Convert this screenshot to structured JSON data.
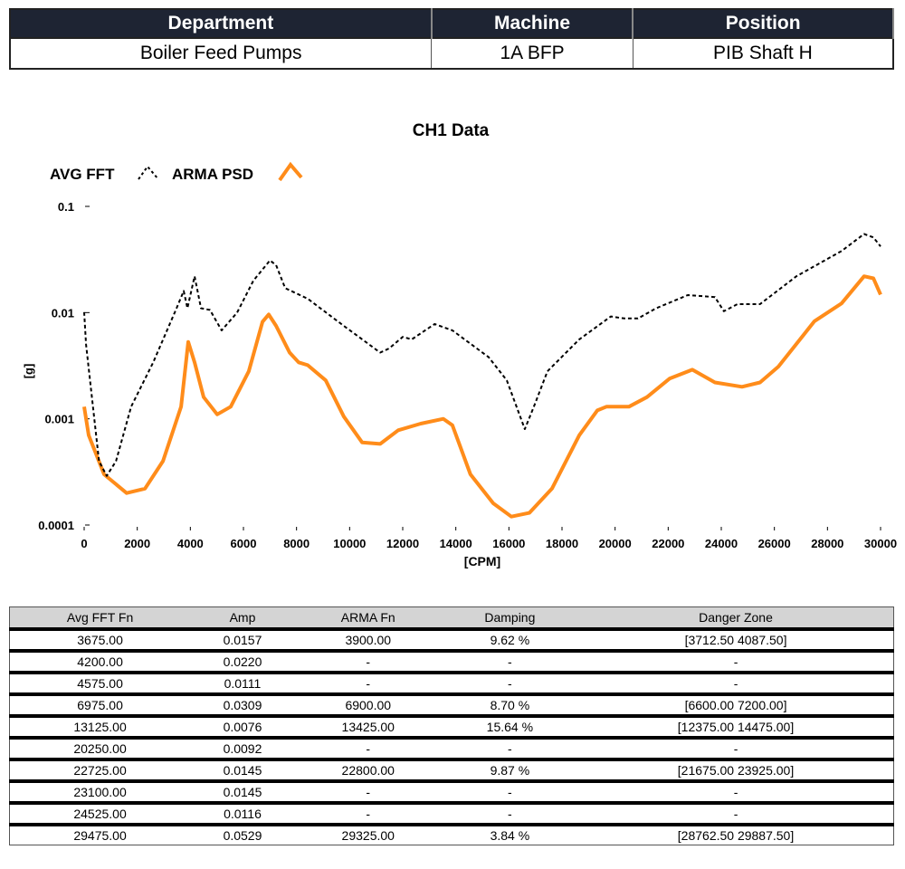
{
  "info": {
    "headers": [
      "Department",
      "Machine",
      "Position"
    ],
    "values": [
      "Boiler Feed Pumps",
      "1A BFP",
      "PIB Shaft H"
    ]
  },
  "chart_data": {
    "type": "line",
    "title": "CH1 Data",
    "xlabel": "[CPM]",
    "ylabel": "[g]",
    "xlim": [
      0,
      30000
    ],
    "ylim": [
      0.0001,
      0.1
    ],
    "yscale": "log",
    "grid": false,
    "legend": "top-left",
    "xticks": [
      "0",
      "2000",
      "4000",
      "6000",
      "8000",
      "10000",
      "12000",
      "14000",
      "16000",
      "18000",
      "20000",
      "22000",
      "24000",
      "26000",
      "28000",
      "30000"
    ],
    "yticks": [
      "0.1",
      "0.01",
      "0.001",
      "0.0001"
    ],
    "series": [
      {
        "name": "AVG FFT",
        "color": "#000000",
        "style": "dashed",
        "x": [
          0,
          70,
          560,
          850,
          1200,
          1770,
          2600,
          3480,
          3750,
          3890,
          4160,
          4400,
          4740,
          5180,
          5760,
          6375,
          7000,
          7230,
          7570,
          8420,
          9780,
          11150,
          11490,
          12000,
          12340,
          13200,
          13870,
          15240,
          15920,
          16600,
          16940,
          17450,
          18650,
          19840,
          20350,
          20860,
          21550,
          22740,
          23760,
          24100,
          24610,
          25460,
          26830,
          28530,
          29380,
          29730,
          30000
        ],
        "y": [
          0.0101,
          0.005,
          0.0004,
          0.00029,
          0.0004,
          0.0013,
          0.0034,
          0.011,
          0.016,
          0.011,
          0.022,
          0.011,
          0.0106,
          0.0068,
          0.01,
          0.02,
          0.031,
          0.028,
          0.017,
          0.0135,
          0.0075,
          0.0042,
          0.0046,
          0.0059,
          0.0056,
          0.0078,
          0.0068,
          0.0038,
          0.0023,
          0.0008,
          0.0013,
          0.0028,
          0.0056,
          0.0092,
          0.0088,
          0.0088,
          0.011,
          0.0146,
          0.014,
          0.0103,
          0.012,
          0.012,
          0.022,
          0.038,
          0.055,
          0.051,
          0.042
        ]
      },
      {
        "name": "ARMA PSD",
        "color": "#ff8c1a",
        "style": "solid",
        "x": [
          0,
          170,
          750,
          1600,
          2290,
          2970,
          3650,
          3920,
          4160,
          4500,
          5010,
          5520,
          6200,
          6720,
          6950,
          7230,
          7740,
          8080,
          8420,
          9100,
          9780,
          10470,
          11150,
          11830,
          12680,
          13530,
          13870,
          14550,
          15410,
          16090,
          16770,
          17620,
          18650,
          19330,
          19670,
          20520,
          21200,
          22060,
          22910,
          23760,
          24780,
          25460,
          26150,
          27510,
          28530,
          29380,
          29730,
          30000
        ],
        "y": [
          0.0013,
          0.0007,
          0.0003,
          0.0002,
          0.00022,
          0.0004,
          0.0013,
          0.0053,
          0.0034,
          0.0016,
          0.0011,
          0.0013,
          0.0028,
          0.0082,
          0.0096,
          0.0075,
          0.0042,
          0.0034,
          0.0032,
          0.0023,
          0.00105,
          0.0006,
          0.00058,
          0.00078,
          0.0009,
          0.001,
          0.00087,
          0.0003,
          0.00016,
          0.00012,
          0.00013,
          0.00022,
          0.0007,
          0.0012,
          0.0013,
          0.0013,
          0.0016,
          0.0024,
          0.0029,
          0.0022,
          0.002,
          0.0022,
          0.0031,
          0.0083,
          0.0122,
          0.022,
          0.021,
          0.0148
        ]
      }
    ]
  },
  "results": {
    "headers": [
      "Avg FFT Fn",
      "Amp",
      "ARMA Fn",
      "Damping",
      "Danger Zone"
    ],
    "rows": [
      [
        "3675.00",
        "0.0157",
        "3900.00",
        "9.62 %",
        "[3712.50  4087.50]"
      ],
      [
        "4200.00",
        "0.0220",
        "-",
        "-",
        "-"
      ],
      [
        "4575.00",
        "0.0111",
        "-",
        "-",
        "-"
      ],
      [
        "6975.00",
        "0.0309",
        "6900.00",
        "8.70 %",
        "[6600.00  7200.00]"
      ],
      [
        "13125.00",
        "0.0076",
        "13425.00",
        "15.64 %",
        "[12375.00  14475.00]"
      ],
      [
        "20250.00",
        "0.0092",
        "-",
        "-",
        "-"
      ],
      [
        "22725.00",
        "0.0145",
        "22800.00",
        "9.87 %",
        "[21675.00  23925.00]"
      ],
      [
        "23100.00",
        "0.0145",
        "-",
        "-",
        "-"
      ],
      [
        "24525.00",
        "0.0116",
        "-",
        "-",
        "-"
      ],
      [
        "29475.00",
        "0.0529",
        "29325.00",
        "3.84 %",
        "[28762.50  29887.50]"
      ]
    ]
  }
}
